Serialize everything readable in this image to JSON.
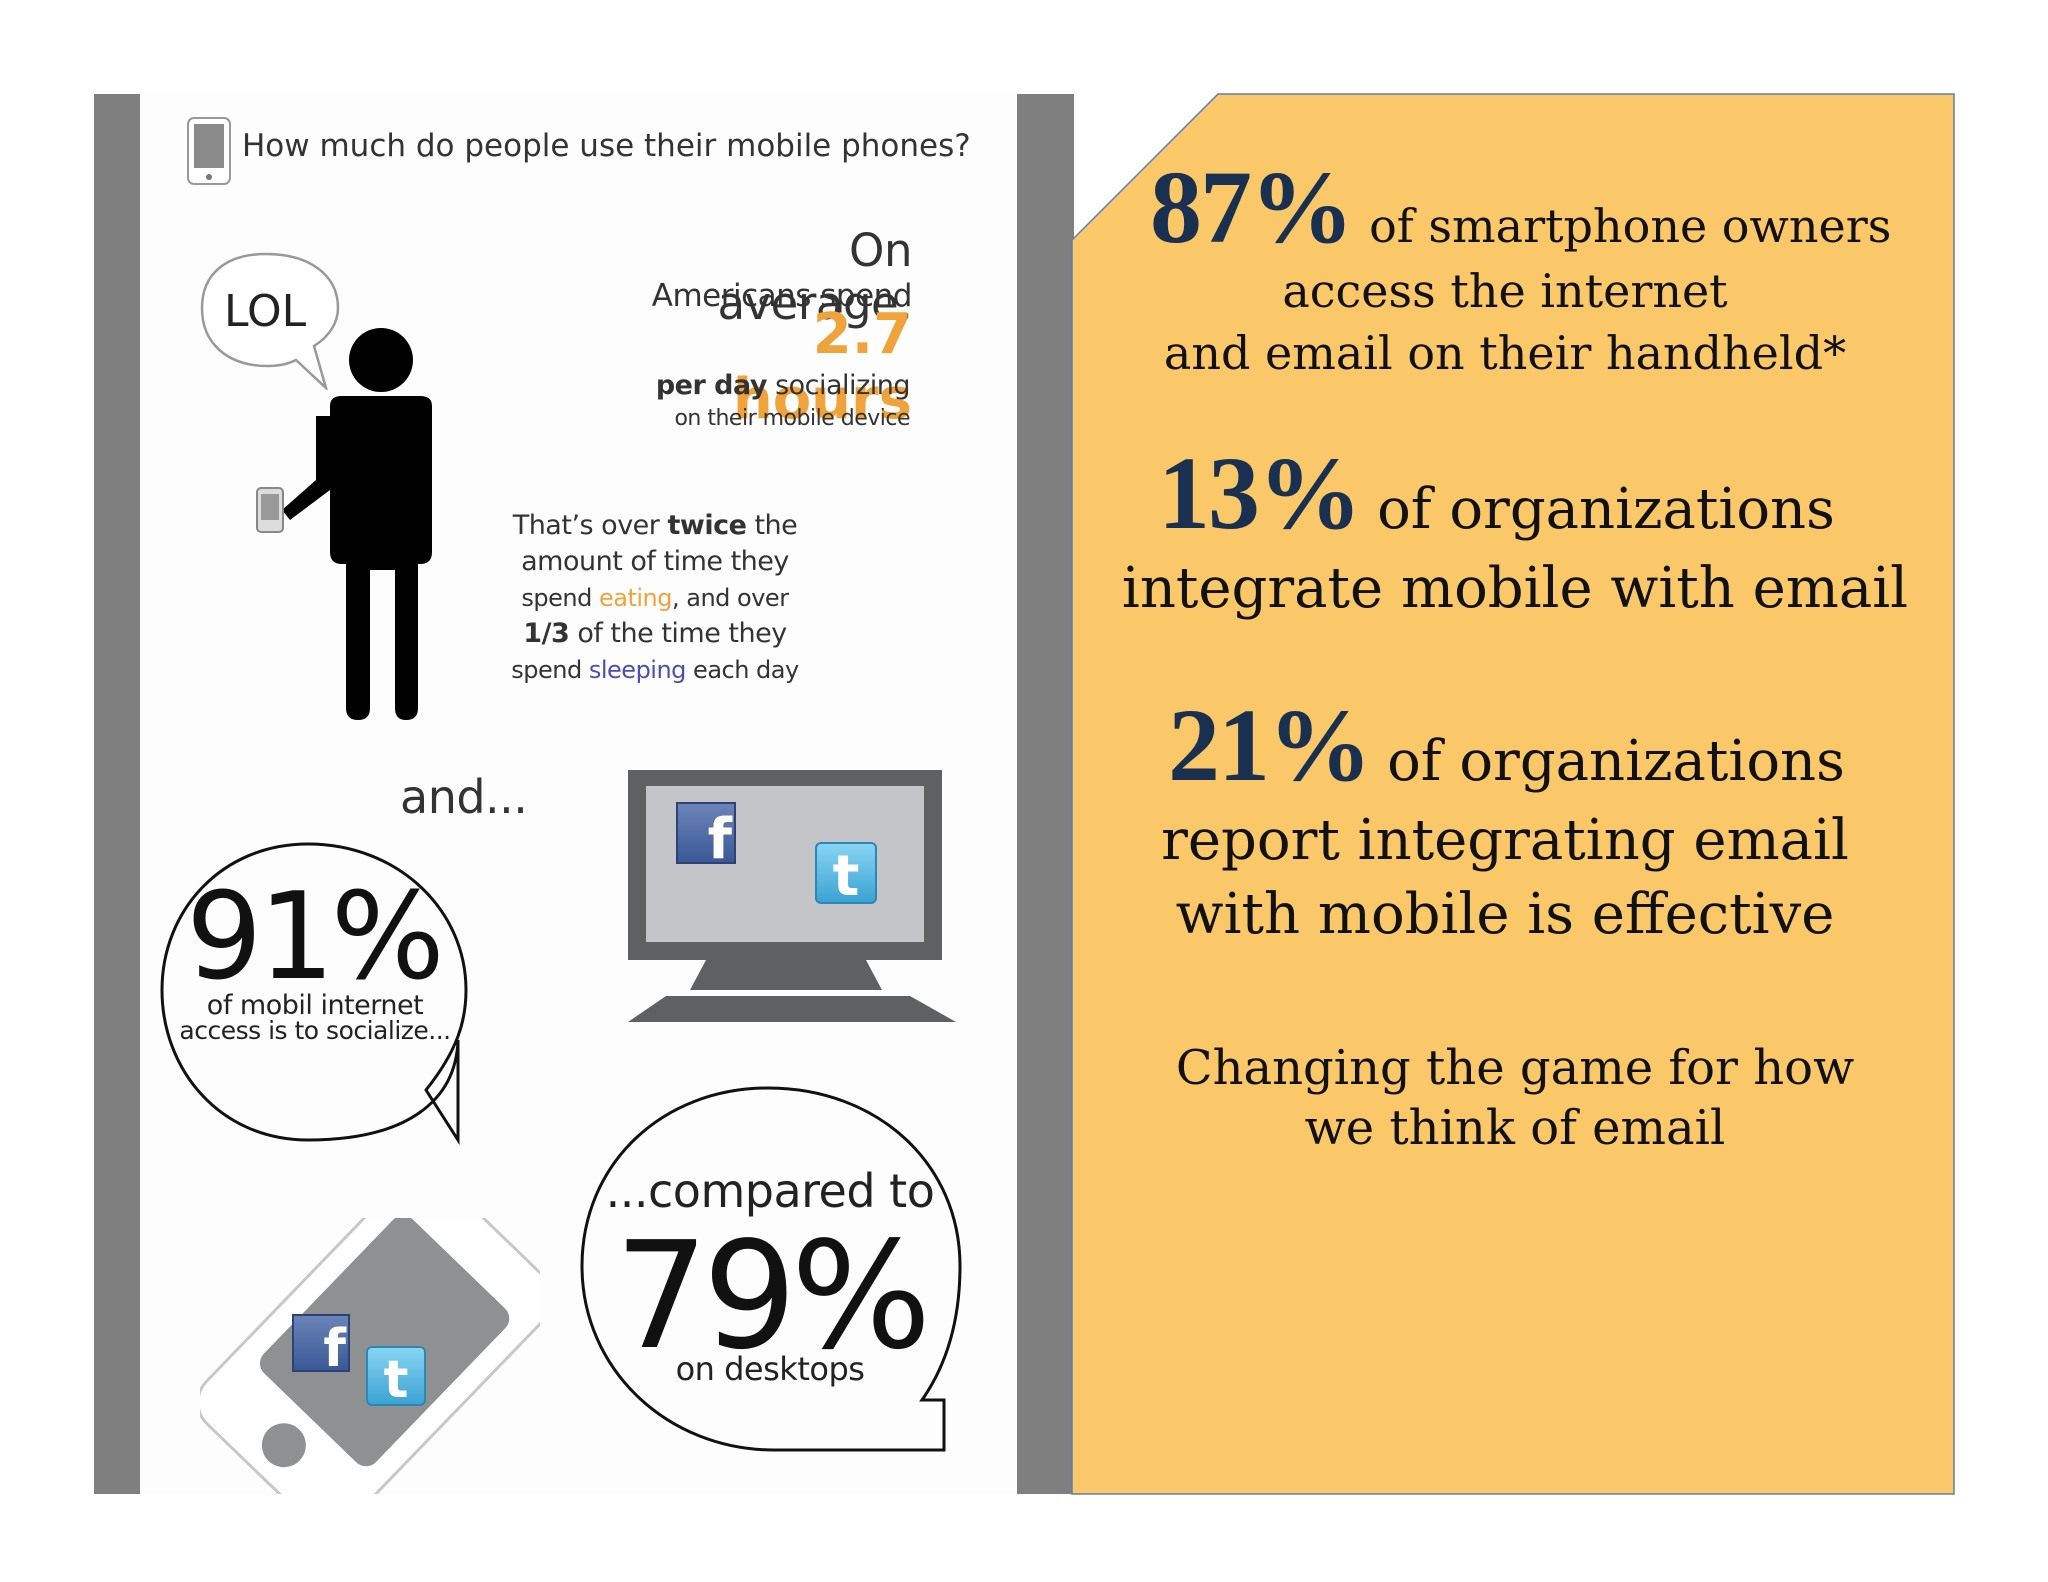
{
  "infographic": {
    "question": "How much do people use their mobile phones?",
    "lol": "LOL",
    "on_average": "On average,",
    "americans_spend": "Americans spend",
    "hours": "2.7 hours",
    "per_day_bold": "per day",
    "socializing": " socializing",
    "on_device": "on their mobile device",
    "twice_line1_a": "That’s over ",
    "twice_line1_b": "twice",
    "twice_line1_c": " the",
    "twice_line2": "amount of time they",
    "twice_line3_a": "spend ",
    "twice_line3_b": "eating",
    "twice_line3_c": ", and over",
    "twice_line4_a": "1/3",
    "twice_line4_b": " of the time they",
    "twice_line5_a": "spend ",
    "twice_line5_b": "sleeping",
    "twice_line5_c": " each day",
    "and": "and...",
    "pct91": "91%",
    "pct91_line1": "of mobil internet",
    "pct91_line2": "access is to socialize...",
    "compared_to": "...compared to",
    "pct79": "79%",
    "on_desktops": "on desktops",
    "fb_glyph": "f",
    "tw_glyph": "t"
  },
  "stats": [
    {
      "value": "87%",
      "line1": "of smartphone owners",
      "line2": "access the internet",
      "line3": "and email on their handheld*"
    },
    {
      "value": "13%",
      "line1": "of organizations",
      "line2": "integrate mobile with email"
    },
    {
      "value": "21%",
      "line1": "of organizations",
      "line2": "report integrating email",
      "line3": "with mobile is effective"
    }
  ],
  "tagline": {
    "line1": "Changing the game for how",
    "line2": "we think of email"
  },
  "colors": {
    "panel_gray": "#7f7f80",
    "right_bg": "#fbc869",
    "stat_navy": "#1a3051",
    "accent_orange": "#f0a33a",
    "facebook": "#3b5998",
    "twitter": "#4ab3e0"
  }
}
